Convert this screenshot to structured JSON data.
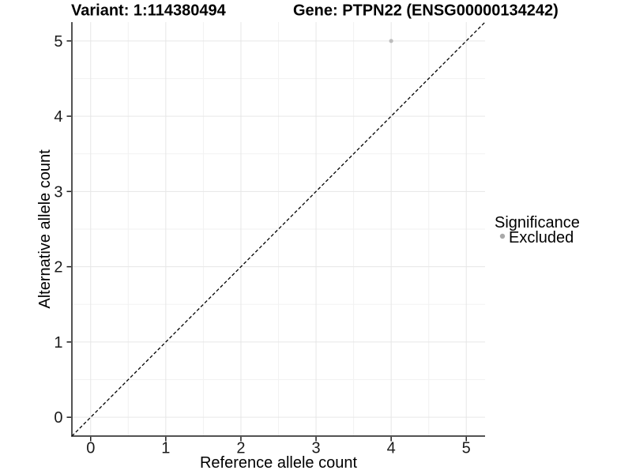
{
  "chart_data": {
    "type": "scatter",
    "title_left": "Variant: 1:114380494",
    "title_right": "Gene: PTPN22 (ENSG00000134242)",
    "xlabel": "Reference allele count",
    "ylabel": "Alternative allele count",
    "xlim": [
      -0.25,
      5.25
    ],
    "ylim": [
      -0.25,
      5.25
    ],
    "xticks": [
      0,
      1,
      2,
      3,
      4,
      5
    ],
    "yticks": [
      0,
      1,
      2,
      3,
      4,
      5
    ],
    "grid": "major and minor gridlines, white panel background",
    "series": [
      {
        "name": "Excluded",
        "color": "#bdbdbd",
        "points": [
          {
            "x": 4,
            "y": 5
          }
        ]
      }
    ],
    "reference_line": {
      "kind": "identity y = x",
      "style": "dashed",
      "color": "#000000"
    },
    "legend": {
      "title": "Significance",
      "position": "right",
      "items": [
        {
          "label": "Excluded",
          "marker_color": "#a9a9a9"
        }
      ]
    },
    "colors": {
      "axis_line": "#1a1a1a",
      "grid_major": "#e6e6e6",
      "grid_minor": "#f2f2f2",
      "point": "#bdbdbd",
      "background": "#ffffff"
    }
  }
}
